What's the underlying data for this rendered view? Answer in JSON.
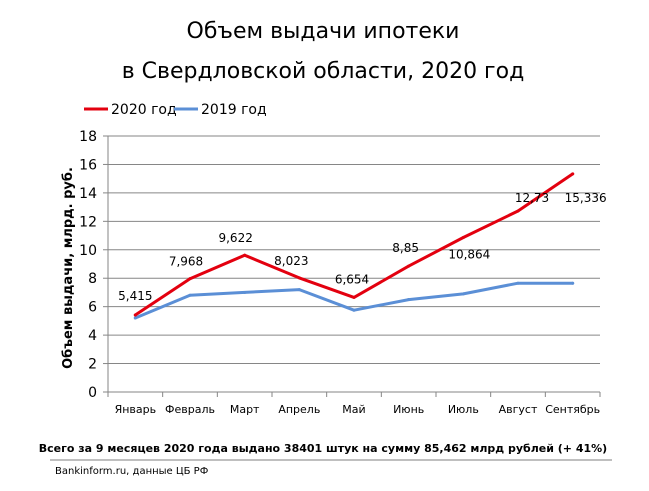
{
  "chart_data": {
    "type": "line",
    "title_lines": [
      "Объем выдачи ипотеки",
      "в Свердловской  области, 2020 год"
    ],
    "xlabel": "",
    "ylabel": "Объем выдачи, млрд. руб.",
    "categories": [
      "Январь",
      "Февраль",
      "Март",
      "Апрель",
      "Май",
      "Июнь",
      "Июль",
      "Август",
      "Сентябрь"
    ],
    "ylim": [
      0,
      18
    ],
    "yticks": [
      "0",
      "2",
      "4",
      "6",
      "8",
      "10",
      "12",
      "14",
      "16",
      "18"
    ],
    "grid": true,
    "legend_position": "top-left",
    "series": [
      {
        "name": "2020 год",
        "color": "#e3000f",
        "values": [
          5.415,
          7.968,
          9.622,
          8.023,
          6.654,
          8.85,
          10.864,
          12.73,
          15.336
        ],
        "labels": [
          "5,415",
          "7,968",
          "9,622",
          "8,023",
          "6,654",
          "8,85",
          "10,864",
          "12,73",
          "15,336"
        ]
      },
      {
        "name": "2019 год",
        "color": "#5b8fd6",
        "values": [
          5.2,
          6.8,
          7.0,
          7.2,
          5.75,
          6.5,
          6.9,
          7.65,
          7.65
        ]
      }
    ]
  },
  "footer": {
    "summary": "Всего за 9 месяцев 2020 года  выдано 38401 штук на сумму 85,462  млрд  рублей  (+ 41%)",
    "source": "Bankinform.ru,  данные ЦБ РФ",
    "rule_color": "#7f7f7f"
  }
}
